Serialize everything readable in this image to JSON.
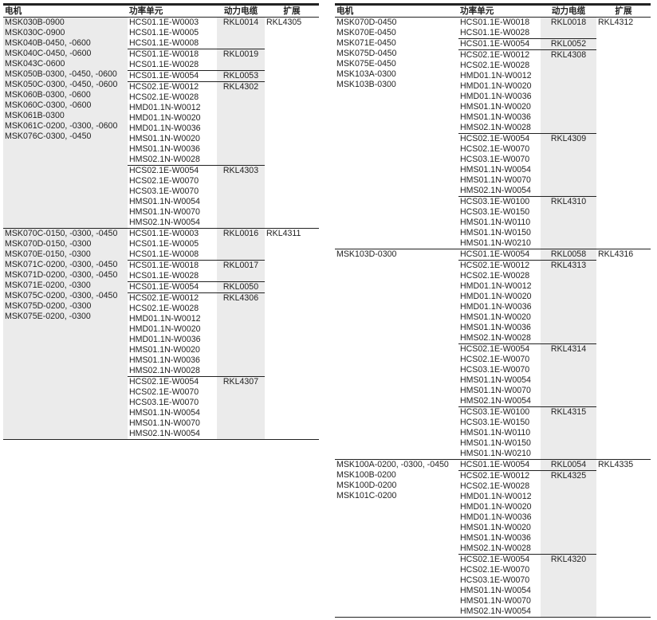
{
  "headers": {
    "motor": "电机",
    "unit": "功率单元",
    "cable": "动力电缆",
    "ext": "扩展"
  },
  "tables": [
    {
      "groups": [
        {
          "motors": [
            "MSK030B-0900",
            "MSK030C-0900",
            "MSK040B-0450, -0600",
            "MSK040C-0450, -0600",
            "MSK043C-0600",
            "MSK050B-0300, -0450, -0600",
            "MSK050C-0300, -0450, -0600",
            "MSK060B-0300, -0600",
            "MSK060C-0300, -0600",
            "MSK061B-0300",
            "MSK061C-0200, -0300, -0600",
            "MSK076C-0300, -0450"
          ],
          "extension": "RKL4305",
          "subgroups": [
            {
              "units": [
                "HCS01.1E-W0003",
                "HCS01.1E-W0005",
                "HCS01.1E-W0008"
              ],
              "cable": "RKL0014"
            },
            {
              "units": [
                "HCS01.1E-W0018",
                "HCS01.1E-W0028"
              ],
              "cable": "RKL0019"
            },
            {
              "units": [
                "HCS01.1E-W0054"
              ],
              "cable": "RKL0053"
            },
            {
              "units": [
                "HCS02.1E-W0012",
                "HCS02.1E-W0028",
                "HMD01.1N-W0012",
                "HMD01.1N-W0020",
                "HMD01.1N-W0036",
                "HMS01.1N-W0020",
                "HMS01.1N-W0036",
                "HMS02.1N-W0028"
              ],
              "cable": "RKL4302"
            },
            {
              "units": [
                "HCS02.1E-W0054",
                "HCS02.1E-W0070",
                "HCS03.1E-W0070",
                "HMS01.1N-W0054",
                "HMS01.1N-W0070",
                "HMS02.1N-W0054"
              ],
              "cable": "RKL4303"
            }
          ]
        },
        {
          "motors": [
            "MSK070C-0150, -0300, -0450",
            "MSK070D-0150, -0300",
            "MSK070E-0150, -0300",
            "MSK071C-0200, -0300, -0450",
            "MSK071D-0200, -0300, -0450",
            "MSK071E-0200, -0300",
            "MSK075C-0200, -0300, -0450",
            "MSK075D-0200, -0300",
            "MSK075E-0200, -0300"
          ],
          "extension": "RKL4311",
          "subgroups": [
            {
              "units": [
                "HCS01.1E-W0003",
                "HCS01.1E-W0005",
                "HCS01.1E-W0008"
              ],
              "cable": "RKL0016"
            },
            {
              "units": [
                "HCS01.1E-W0018",
                "HCS01.1E-W0028"
              ],
              "cable": "RKL0017"
            },
            {
              "units": [
                "HCS01.1E-W0054"
              ],
              "cable": "RKL0050"
            },
            {
              "units": [
                "HCS02.1E-W0012",
                "HCS02.1E-W0028",
                "HMD01.1N-W0012",
                "HMD01.1N-W0020",
                "HMD01.1N-W0036",
                "HMS01.1N-W0020",
                "HMS01.1N-W0036",
                "HMS02.1N-W0028"
              ],
              "cable": "RKL4306"
            },
            {
              "units": [
                "HCS02.1E-W0054",
                "HCS02.1E-W0070",
                "HCS03.1E-W0070",
                "HMS01.1N-W0054",
                "HMS01.1N-W0070",
                "HMS02.1N-W0054"
              ],
              "cable": "RKL4307"
            }
          ]
        }
      ]
    },
    {
      "groups": [
        {
          "motors": [
            "MSK070D-0450",
            "MSK070E-0450",
            "MSK071E-0450",
            "MSK075D-0450",
            "MSK075E-0450",
            "MSK103A-0300",
            "MSK103B-0300"
          ],
          "extension": "RKL4312",
          "subgroups": [
            {
              "units": [
                "HCS01.1E-W0018",
                "HCS01.1E-W0028"
              ],
              "cable": "RKL0018"
            },
            {
              "units": [
                "HCS01.1E-W0054"
              ],
              "cable": "RKL0052"
            },
            {
              "units": [
                "HCS02.1E-W0012",
                "HCS02.1E-W0028",
                "HMD01.1N-W0012",
                "HMD01.1N-W0020",
                "HMD01.1N-W0036",
                "HMS01.1N-W0020",
                "HMS01.1N-W0036",
                "HMS02.1N-W0028"
              ],
              "cable": "RKL4308"
            },
            {
              "units": [
                "HCS02.1E-W0054",
                "HCS02.1E-W0070",
                "HCS03.1E-W0070",
                "HMS01.1N-W0054",
                "HMS01.1N-W0070",
                "HMS02.1N-W0054"
              ],
              "cable": "RKL4309"
            },
            {
              "units": [
                "HCS03.1E-W0100",
                "HCS03.1E-W0150",
                "HMS01.1N-W0110",
                "HMS01.1N-W0150",
                "HMS01.1N-W0210"
              ],
              "cable": "RKL4310"
            }
          ]
        },
        {
          "motors": [
            "MSK103D-0300"
          ],
          "extension": "RKL4316",
          "subgroups": [
            {
              "units": [
                "HCS01.1E-W0054"
              ],
              "cable": "RKL0058"
            },
            {
              "units": [
                "HCS02.1E-W0012",
                "HCS02.1E-W0028",
                "HMD01.1N-W0012",
                "HMD01.1N-W0020",
                "HMD01.1N-W0036",
                "HMS01.1N-W0020",
                "HMS01.1N-W0036",
                "HMS02.1N-W0028"
              ],
              "cable": "RKL4313"
            },
            {
              "units": [
                "HCS02.1E-W0054",
                "HCS02.1E-W0070",
                "HCS03.1E-W0070",
                "HMS01.1N-W0054",
                "HMS01.1N-W0070",
                "HMS02.1N-W0054"
              ],
              "cable": "RKL4314"
            },
            {
              "units": [
                "HCS03.1E-W0100",
                "HCS03.1E-W0150",
                "HMS01.1N-W0110",
                "HMS01.1N-W0150",
                "HMS01.1N-W0210"
              ],
              "cable": "RKL4315"
            }
          ]
        },
        {
          "motors": [
            "MSK100A-0200, -0300, -0450",
            "MSK100B-0200",
            "MSK100D-0200",
            "MSK101C-0200"
          ],
          "extension": "RKL4335",
          "subgroups": [
            {
              "units": [
                "HCS01.1E-W0054"
              ],
              "cable": "RKL0054"
            },
            {
              "units": [
                "HCS02.1E-W0012",
                "HCS02.1E-W0028",
                "HMD01.1N-W0012",
                "HMD01.1N-W0020",
                "HMD01.1N-W0036",
                "HMS01.1N-W0020",
                "HMS01.1N-W0036",
                "HMS02.1N-W0028"
              ],
              "cable": "RKL4325"
            },
            {
              "units": [
                "HCS02.1E-W0054",
                "HCS02.1E-W0070",
                "HCS03.1E-W0070",
                "HMS01.1N-W0054",
                "HMS01.1N-W0070",
                "HMS02.1N-W0054"
              ],
              "cable": "RKL4320"
            }
          ]
        }
      ]
    }
  ]
}
